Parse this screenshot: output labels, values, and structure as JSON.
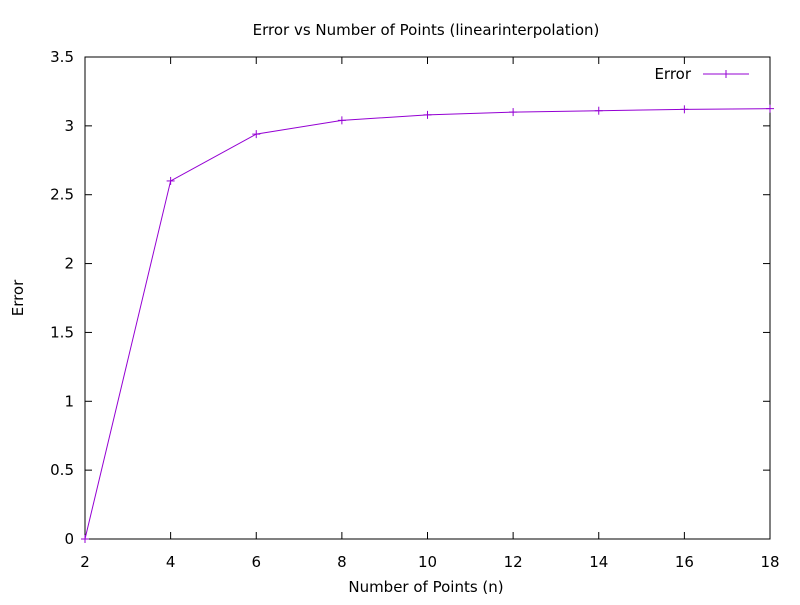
{
  "chart_data": {
    "type": "line",
    "title": "Error vs Number of Points (linearinterpolation)",
    "xlabel": "Number of Points (n)",
    "ylabel": "Error",
    "xlim": [
      2,
      18
    ],
    "ylim": [
      0,
      3.5
    ],
    "xticks": [
      2,
      4,
      6,
      8,
      10,
      12,
      14,
      16,
      18
    ],
    "yticks": [
      0,
      0.5,
      1,
      1.5,
      2,
      2.5,
      3,
      3.5
    ],
    "xtick_labels": [
      "2",
      "4",
      "6",
      "8",
      "10",
      "12",
      "14",
      "16",
      "18"
    ],
    "ytick_labels": [
      "0",
      "0.5",
      "1",
      "1.5",
      "2",
      "2.5",
      "3",
      "3.5"
    ],
    "grid": false,
    "legend_position": "top-right",
    "series": [
      {
        "name": "Error",
        "color": "#9400d3",
        "marker": "plus",
        "x": [
          2,
          4,
          6,
          8,
          10,
          12,
          14,
          16,
          18
        ],
        "y": [
          0,
          2.6,
          2.94,
          3.04,
          3.08,
          3.1,
          3.11,
          3.12,
          3.125
        ]
      }
    ]
  }
}
